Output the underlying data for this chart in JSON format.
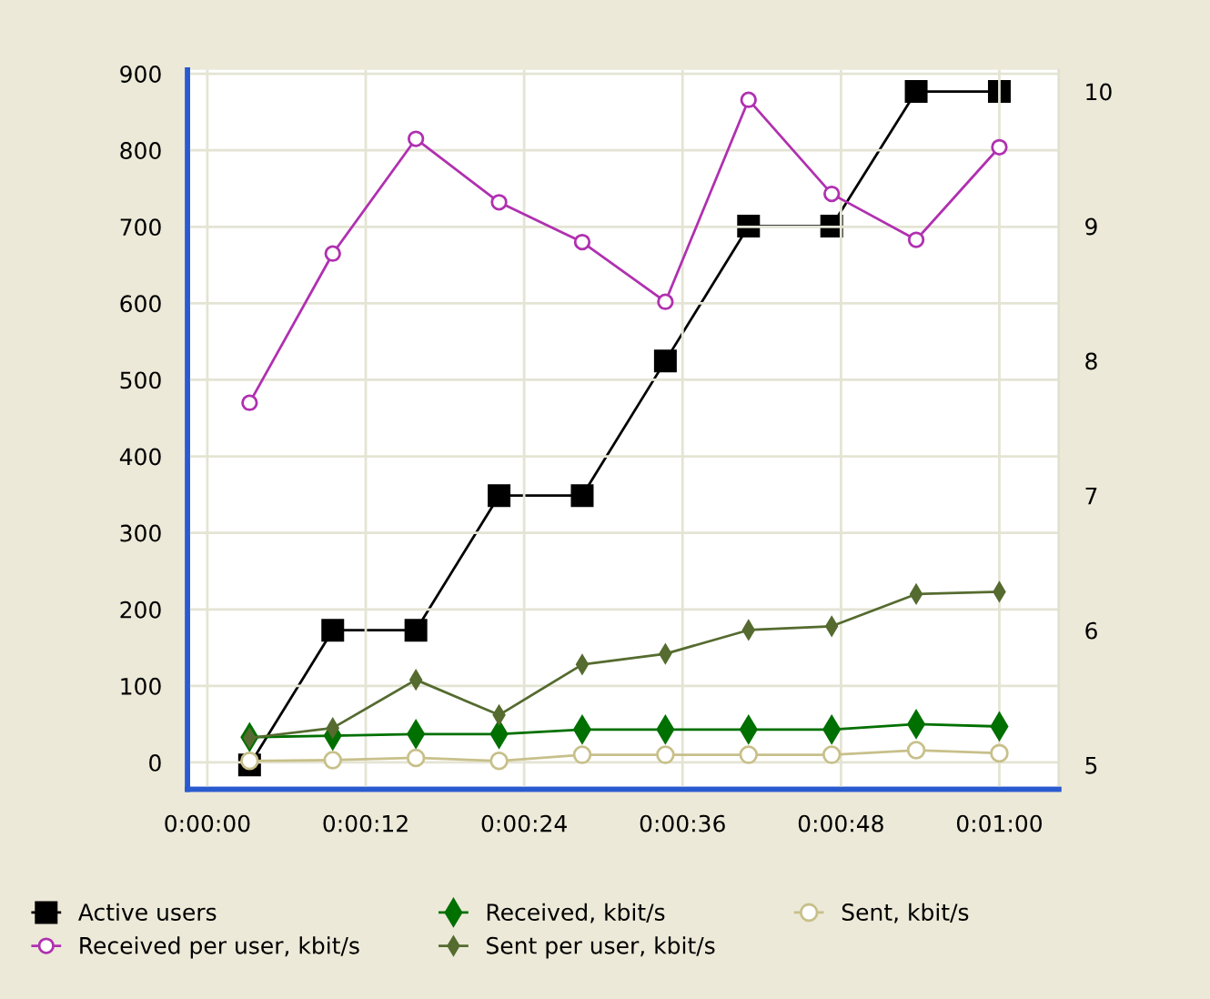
{
  "chart_data": {
    "type": "line",
    "x": [
      3.2,
      9.5,
      15.8,
      22.1,
      28.4,
      34.7,
      41.0,
      47.3,
      53.7,
      60.0
    ],
    "series": [
      {
        "name": "Active users",
        "color": "#000000",
        "marker": "square",
        "axis": "y2",
        "values": [
          5,
          6,
          6,
          7,
          7,
          8,
          9,
          9,
          10,
          10
        ]
      },
      {
        "name": "Received, kbit/s",
        "color": "#007000",
        "marker": "diamond",
        "values": [
          33,
          35,
          37,
          37,
          43,
          43,
          43,
          43,
          50,
          47
        ]
      },
      {
        "name": "Sent, kbit/s",
        "color": "#c8c08a",
        "marker": "circle",
        "values": [
          2,
          3,
          6,
          2,
          10,
          10,
          10,
          10,
          16,
          12
        ]
      },
      {
        "name": "Received per user, kbit/s",
        "color": "#b030b0",
        "marker": "circle",
        "values": [
          470,
          665,
          815,
          732,
          680,
          602,
          866,
          743,
          683,
          804
        ]
      },
      {
        "name": "Sent per user, kbit/s",
        "color": "#556b2f",
        "marker": "diamond",
        "values": [
          32,
          45,
          108,
          62,
          128,
          142,
          173,
          178,
          220,
          223
        ]
      }
    ],
    "xlim": [
      -1.5,
      64.5
    ],
    "xticks": [
      {
        "value": 0,
        "label": "0:00:00"
      },
      {
        "value": 12,
        "label": "0:00:12"
      },
      {
        "value": 24,
        "label": "0:00:24"
      },
      {
        "value": 36,
        "label": "0:00:36"
      },
      {
        "value": 48,
        "label": "0:00:48"
      },
      {
        "value": 60,
        "label": "0:01:00"
      }
    ],
    "ylim": [
      -35,
      905
    ],
    "yticks": [
      0,
      100,
      200,
      300,
      400,
      500,
      600,
      700,
      800,
      900
    ],
    "y2lim": [
      4.82,
      10.16
    ],
    "y2ticks": [
      5,
      6,
      7,
      8,
      9,
      10
    ],
    "grid": true,
    "legend": "bottom"
  }
}
